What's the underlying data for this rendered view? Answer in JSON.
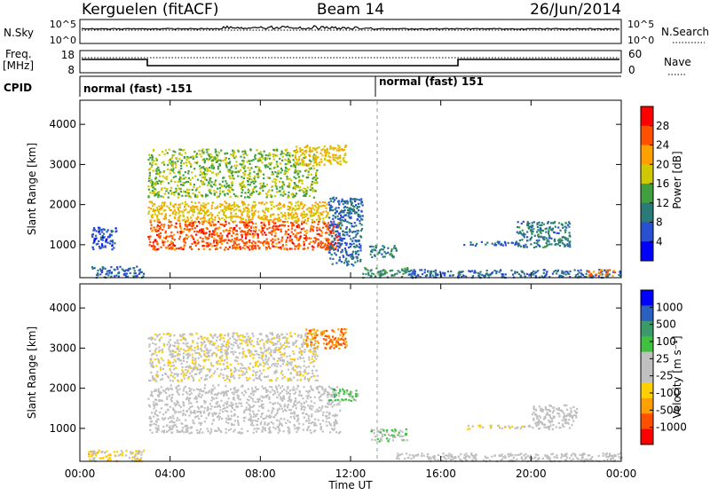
{
  "header": {
    "station": "Kerguelen (fitACF)",
    "beam": "Beam 14",
    "date": "26/Jun/2014"
  },
  "sky_panel": {
    "left_label": "N.Sky",
    "left_ticks": [
      "10^5",
      "10^0"
    ],
    "right_label": "N.Search",
    "right_ticks": [
      "10^5",
      "10^0"
    ]
  },
  "freq_panel": {
    "left_label_line1": "Freq.",
    "left_label_line2": "[MHz]",
    "left_ticks": [
      "18",
      "8"
    ],
    "right_label": "Nave",
    "right_ticks": [
      "60",
      "0"
    ]
  },
  "cpid_panel": {
    "label": "CPID",
    "segments": [
      {
        "label": "normal (fast) -151",
        "start_hour": 0
      },
      {
        "label": "normal (fast) 151",
        "start_hour": 13.3
      }
    ]
  },
  "x_axis": {
    "label": "Time UT",
    "ticks": [
      "00:00",
      "04:00",
      "08:00",
      "12:00",
      "16:00",
      "20:00",
      "00:00"
    ]
  },
  "chart_data": [
    {
      "type": "heatmap",
      "title": "",
      "xlabel": "Time UT",
      "ylabel": "Slant Range [km]",
      "xlim_hours": [
        0,
        24
      ],
      "ylim_km": [
        180,
        4600
      ],
      "yticks": [
        "1000",
        "2000",
        "3000",
        "4000"
      ],
      "colorbar": {
        "label": "Power [dB]",
        "ticks": [
          "28",
          "24",
          "20",
          "16",
          "12",
          "8",
          "4"
        ],
        "colors": [
          "#0000ff",
          "#2850d0",
          "#2a7a7a",
          "#40a040",
          "#d0c800",
          "#ffa000",
          "#ff5000",
          "#ff0000"
        ],
        "range": [
          0,
          32
        ]
      },
      "regions": [
        {
          "t0": 0.5,
          "t1": 2.8,
          "r0": 200,
          "r1": 480,
          "value": 8
        },
        {
          "t0": 0.5,
          "t1": 1.6,
          "r0": 900,
          "r1": 1450,
          "value": 6
        },
        {
          "t0": 3.0,
          "t1": 11.5,
          "r0": 900,
          "r1": 1600,
          "value": 26
        },
        {
          "t0": 3.0,
          "t1": 11.0,
          "r0": 1600,
          "r1": 2100,
          "value": 20
        },
        {
          "t0": 3.0,
          "t1": 10.5,
          "r0": 2200,
          "r1": 3400,
          "value": 16
        },
        {
          "t0": 9.5,
          "t1": 11.8,
          "r0": 3000,
          "r1": 3500,
          "value": 20
        },
        {
          "t0": 11.0,
          "t1": 12.5,
          "r0": 500,
          "r1": 2200,
          "value": 8
        },
        {
          "t0": 12.5,
          "t1": 14.5,
          "r0": 200,
          "r1": 450,
          "value": 12
        },
        {
          "t0": 12.8,
          "t1": 14.0,
          "r0": 700,
          "r1": 1000,
          "value": 10
        },
        {
          "t0": 19.3,
          "t1": 21.7,
          "r0": 950,
          "r1": 1600,
          "value": 10
        },
        {
          "t0": 17.0,
          "t1": 19.3,
          "r0": 1000,
          "r1": 1100,
          "value": 7
        },
        {
          "t0": 14.5,
          "t1": 24.0,
          "r0": 200,
          "r1": 400,
          "value": 8
        },
        {
          "t0": 22.5,
          "t1": 23.7,
          "r0": 250,
          "r1": 400,
          "value": 24
        }
      ]
    },
    {
      "type": "heatmap",
      "title": "",
      "xlabel": "Time UT",
      "ylabel": "Slant Range [km]",
      "xlim_hours": [
        0,
        24
      ],
      "ylim_km": [
        180,
        4600
      ],
      "yticks": [
        "1000",
        "2000",
        "3000",
        "4000"
      ],
      "colorbar": {
        "label": "Velocity [m s⁻¹]",
        "ticks": [
          "1000",
          "500",
          "100",
          "25",
          "-25",
          "-100",
          "-500",
          "-1000"
        ],
        "colors": [
          "#ff0000",
          "#ff5000",
          "#ffa000",
          "#ffd000",
          "#c0c0c0",
          "#c0c0c0",
          "#40c040",
          "#3a9a6a",
          "#2a60c0",
          "#0000ff"
        ],
        "range": [
          -1200,
          1200
        ]
      },
      "regions": [
        {
          "t0": 0.3,
          "t1": 2.8,
          "r0": 200,
          "r1": 480,
          "value": -300
        },
        {
          "t0": 3.0,
          "t1": 11.5,
          "r0": 900,
          "r1": 2100,
          "value": 0
        },
        {
          "t0": 3.0,
          "t1": 10.5,
          "r0": 2200,
          "r1": 3400,
          "value": -150
        },
        {
          "t0": 10.0,
          "t1": 11.8,
          "r0": 3000,
          "r1": 3500,
          "value": -700
        },
        {
          "t0": 11.0,
          "t1": 12.3,
          "r0": 1700,
          "r1": 2000,
          "value": 300
        },
        {
          "t0": 12.8,
          "t1": 14.5,
          "r0": 700,
          "r1": 1000,
          "value": 200
        },
        {
          "t0": 20.0,
          "t1": 22.0,
          "r0": 1000,
          "r1": 1600,
          "value": 0
        },
        {
          "t0": 17.0,
          "t1": 20.0,
          "r0": 1000,
          "r1": 1100,
          "value": -200
        },
        {
          "t0": 14.0,
          "t1": 24.0,
          "r0": 200,
          "r1": 400,
          "value": 0
        }
      ]
    }
  ]
}
